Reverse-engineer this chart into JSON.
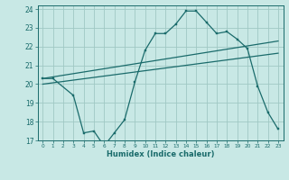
{
  "title": "",
  "xlabel": "Humidex (Indice chaleur)",
  "background_color": "#c8e8e5",
  "grid_color": "#a0c8c4",
  "line_color": "#1a6b6b",
  "xlim": [
    -0.5,
    23.5
  ],
  "ylim": [
    17,
    24.2
  ],
  "yticks": [
    17,
    18,
    19,
    20,
    21,
    22,
    23,
    24
  ],
  "xticks": [
    0,
    1,
    2,
    3,
    4,
    5,
    6,
    7,
    8,
    9,
    10,
    11,
    12,
    13,
    14,
    15,
    16,
    17,
    18,
    19,
    20,
    21,
    22,
    23
  ],
  "series1_x": [
    0,
    1,
    3,
    4,
    5,
    6,
    7,
    8,
    9,
    10,
    11,
    12,
    13,
    14,
    15,
    16,
    17,
    18,
    19,
    20,
    21,
    22,
    23
  ],
  "series1_y": [
    20.3,
    20.3,
    19.4,
    17.4,
    17.5,
    16.7,
    17.4,
    18.1,
    20.1,
    21.8,
    22.7,
    22.7,
    23.2,
    23.9,
    23.9,
    23.3,
    22.7,
    22.8,
    22.4,
    21.9,
    19.9,
    18.5,
    17.6
  ],
  "series2_x": [
    0,
    23
  ],
  "series2_y": [
    20.3,
    22.3
  ],
  "series3_x": [
    0,
    23
  ],
  "series3_y": [
    20.0,
    21.65
  ]
}
